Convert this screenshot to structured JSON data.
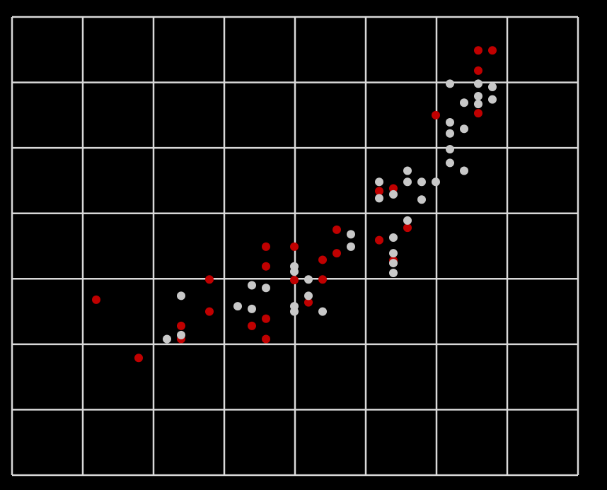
{
  "chart_data": {
    "type": "scatter",
    "xlim": [
      0,
      8
    ],
    "ylim": [
      0,
      7
    ],
    "xticks": [
      0,
      1,
      2,
      3,
      4,
      5,
      6,
      7,
      8
    ],
    "yticks": [
      0,
      1,
      2,
      3,
      4,
      5,
      6,
      7
    ],
    "grid": true,
    "grid_color": "#d9d9d9",
    "background": "#000000",
    "series": [
      {
        "color": "#c00000",
        "x": [
          6.59,
          6.79,
          6.59,
          5.99,
          6.59,
          5.19,
          5.39,
          4.59,
          5.19,
          5.59,
          3.59,
          3.99,
          3.59,
          4.39,
          4.59,
          2.79,
          3.99,
          4.39,
          1.19,
          4.19,
          2.79,
          3.59,
          2.39,
          3.39,
          2.39,
          3.59,
          1.79,
          5.39
        ],
        "values": [
          6.49,
          6.49,
          6.18,
          5.5,
          5.53,
          4.34,
          4.38,
          3.75,
          3.59,
          3.78,
          3.49,
          3.49,
          3.19,
          3.29,
          3.39,
          2.99,
          2.98,
          2.99,
          2.68,
          2.64,
          2.5,
          2.39,
          2.28,
          2.28,
          2.08,
          2.08,
          1.79,
          3.28
        ]
      },
      {
        "color": "#c8c8c8",
        "x": [
          6.19,
          6.59,
          6.79,
          6.59,
          6.79,
          6.39,
          6.59,
          6.19,
          6.19,
          6.39,
          6.19,
          6.19,
          6.39,
          5.59,
          5.19,
          5.59,
          5.79,
          5.99,
          5.19,
          5.39,
          5.79,
          5.59,
          4.79,
          5.39,
          4.79,
          5.39,
          5.39,
          5.39,
          3.99,
          3.99,
          4.19,
          3.39,
          3.59,
          4.19,
          2.39,
          3.19,
          3.39,
          3.99,
          3.99,
          4.39,
          2.39,
          2.19
        ],
        "values": [
          5.98,
          5.98,
          5.93,
          5.79,
          5.74,
          5.69,
          5.67,
          5.39,
          5.22,
          5.29,
          4.98,
          4.77,
          4.65,
          4.65,
          4.48,
          4.48,
          4.48,
          4.48,
          4.23,
          4.29,
          4.21,
          3.89,
          3.68,
          3.63,
          3.49,
          3.39,
          3.24,
          3.09,
          3.19,
          3.11,
          2.99,
          2.9,
          2.86,
          2.74,
          2.74,
          2.58,
          2.54,
          2.58,
          2.5,
          2.5,
          2.14,
          2.08
        ]
      }
    ]
  }
}
